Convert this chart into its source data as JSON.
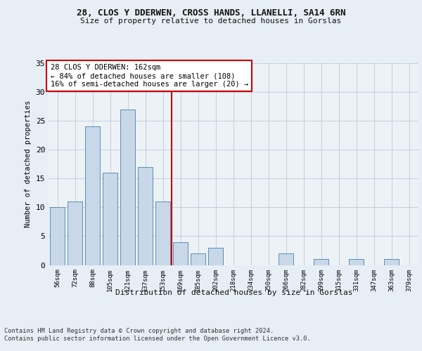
{
  "title1": "28, CLOS Y DDERWEN, CROSS HANDS, LLANELLI, SA14 6RN",
  "title2": "Size of property relative to detached houses in Gorslas",
  "xlabel": "Distribution of detached houses by size in Gorslas",
  "ylabel": "Number of detached properties",
  "bar_labels": [
    "56sqm",
    "72sqm",
    "88sqm",
    "105sqm",
    "121sqm",
    "137sqm",
    "153sqm",
    "169sqm",
    "185sqm",
    "202sqm",
    "218sqm",
    "234sqm",
    "250sqm",
    "266sqm",
    "282sqm",
    "299sqm",
    "315sqm",
    "331sqm",
    "347sqm",
    "363sqm",
    "379sqm"
  ],
  "bar_values": [
    10,
    11,
    24,
    16,
    27,
    17,
    11,
    4,
    2,
    3,
    0,
    0,
    0,
    2,
    0,
    1,
    0,
    1,
    0,
    1,
    0
  ],
  "bar_color": "#c8d8e8",
  "bar_edge_color": "#5b8db8",
  "highlight_line_color": "#cc0000",
  "annotation_text": "28 CLOS Y DDERWEN: 162sqm\n← 84% of detached houses are smaller (108)\n16% of semi-detached houses are larger (20) →",
  "annotation_box_color": "#ffffff",
  "annotation_box_edge_color": "#cc0000",
  "ylim": [
    0,
    35
  ],
  "yticks": [
    0,
    5,
    10,
    15,
    20,
    25,
    30,
    35
  ],
  "footer_text": "Contains HM Land Registry data © Crown copyright and database right 2024.\nContains public sector information licensed under the Open Government Licence v3.0.",
  "bg_color": "#e8eef5",
  "plot_bg_color": "#edf2f7"
}
